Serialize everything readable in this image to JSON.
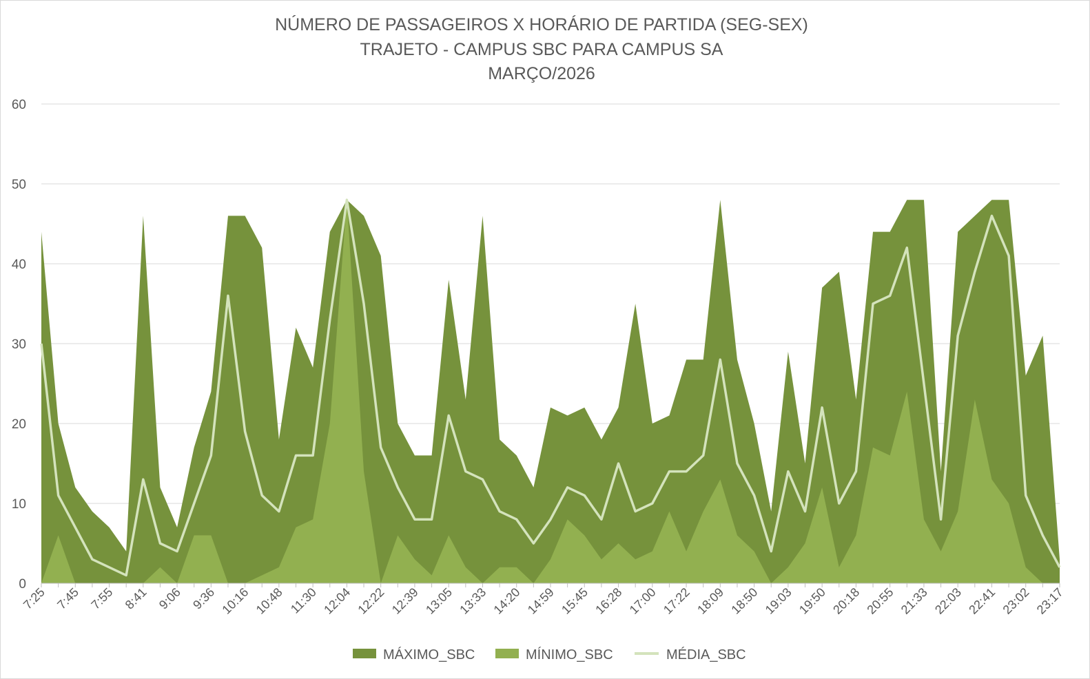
{
  "chart_data": {
    "type": "area",
    "title": [
      "NÚMERO DE PASSAGEIROS X HORÁRIO DE PARTIDA (SEG-SEX)",
      "TRAJETO - CAMPUS SBC PARA CAMPUS SA",
      "MARÇO/2026"
    ],
    "xlabel": "",
    "ylabel": "",
    "ylim": [
      0,
      60
    ],
    "yticks": [
      "0",
      "10",
      "20",
      "30",
      "40",
      "50",
      "60"
    ],
    "grid": true,
    "legend_position": "bottom",
    "x_tick_labels": [
      "7:25",
      "7:45",
      "7:55",
      "8:41",
      "9:06",
      "9:36",
      "10:16",
      "10:48",
      "11:30",
      "12:04",
      "12:22",
      "12:39",
      "13:05",
      "13:33",
      "14:20",
      "14:59",
      "15:45",
      "16:28",
      "17:00",
      "17:22",
      "18:09",
      "18:50",
      "19:03",
      "19:50",
      "20:18",
      "20:55",
      "21:33",
      "22:03",
      "22:41",
      "23:02",
      "23:17"
    ],
    "x_points": 61,
    "series": [
      {
        "name": "MÁXIMO_SBC",
        "style": "area",
        "color": "#76923c",
        "values": [
          44,
          20,
          12,
          9,
          7,
          4,
          46,
          12,
          7,
          17,
          24,
          46,
          46,
          42,
          18,
          32,
          27,
          44,
          48,
          46,
          41,
          20,
          16,
          16,
          38,
          23,
          46,
          18,
          16,
          12,
          22,
          21,
          22,
          18,
          22,
          35,
          20,
          21,
          28,
          28,
          48,
          28,
          20,
          9,
          29,
          15,
          37,
          39,
          23,
          44,
          44,
          48,
          48,
          14,
          44,
          46,
          48,
          48,
          26,
          31,
          3
        ]
      },
      {
        "name": "MÍNIMO_SBC",
        "style": "area",
        "color": "#92b050",
        "values": [
          0,
          6,
          0,
          0,
          0,
          0,
          0,
          2,
          0,
          6,
          6,
          0,
          0,
          1,
          2,
          7,
          8,
          20,
          48,
          14,
          0,
          6,
          3,
          1,
          6,
          2,
          0,
          2,
          2,
          0,
          3,
          8,
          6,
          3,
          5,
          3,
          4,
          9,
          4,
          9,
          13,
          6,
          4,
          0,
          2,
          5,
          12,
          2,
          6,
          17,
          16,
          24,
          8,
          4,
          9,
          23,
          13,
          10,
          2,
          0,
          0
        ]
      },
      {
        "name": "MÉDIA_SBC",
        "style": "line",
        "color": "#d4e3bc",
        "values": [
          30,
          11,
          7,
          3,
          2,
          1,
          13,
          5,
          4,
          10,
          16,
          36,
          19,
          11,
          9,
          16,
          16,
          33,
          48,
          35,
          17,
          12,
          8,
          8,
          21,
          14,
          13,
          9,
          8,
          5,
          8,
          12,
          11,
          8,
          15,
          9,
          10,
          14,
          14,
          16,
          28,
          15,
          11,
          4,
          14,
          9,
          22,
          10,
          14,
          35,
          36,
          42,
          25,
          8,
          31,
          39,
          46,
          41,
          11,
          6,
          2
        ]
      }
    ]
  }
}
